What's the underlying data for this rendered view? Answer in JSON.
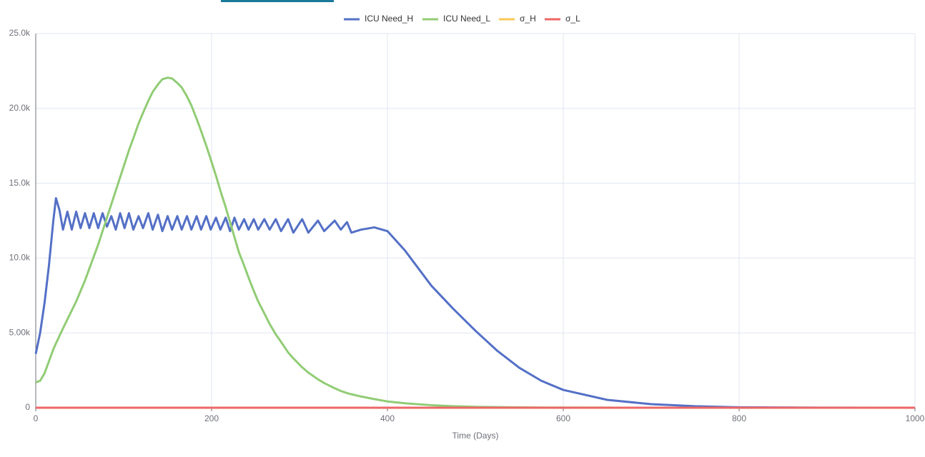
{
  "chart_data": {
    "type": "line",
    "x_label": "Time (Days)",
    "x": [
      0,
      5,
      10,
      15,
      20,
      23,
      27,
      31,
      36,
      41,
      46,
      51,
      56,
      61,
      66,
      71,
      76,
      81,
      86,
      91,
      96,
      101,
      106,
      111,
      117,
      122,
      128,
      133,
      139,
      144,
      150,
      155,
      161,
      166,
      172,
      177,
      183,
      188,
      194,
      199,
      205,
      210,
      216,
      221,
      226,
      231,
      237,
      242,
      248,
      253,
      260,
      266,
      273,
      279,
      287,
      293,
      303,
      310,
      321,
      328,
      340,
      347,
      354,
      359,
      370,
      385,
      400,
      420,
      450,
      475,
      500,
      525,
      550,
      575,
      600,
      650,
      700,
      750,
      800,
      900,
      1000
    ],
    "series": [
      {
        "name": "ICU Need_H",
        "color": "#5470c6",
        "values": [
          3600,
          5000,
          7000,
          9500,
          12500,
          14000,
          13200,
          11900,
          13100,
          11900,
          13100,
          12000,
          13000,
          12000,
          13000,
          12000,
          13000,
          12100,
          12800,
          11900,
          13000,
          12000,
          13000,
          11900,
          12800,
          12000,
          13000,
          11900,
          12900,
          11800,
          12800,
          11900,
          12800,
          11900,
          12800,
          11900,
          12800,
          11900,
          12800,
          11900,
          12700,
          11900,
          12700,
          11800,
          12700,
          11900,
          12600,
          11900,
          12600,
          11900,
          12600,
          11900,
          12600,
          11800,
          12600,
          11700,
          12600,
          11700,
          12500,
          11800,
          12500,
          11900,
          12400,
          11700,
          11900,
          12050,
          11800,
          10500,
          8150,
          6600,
          5150,
          3800,
          2670,
          1800,
          1190,
          525,
          240,
          100,
          30,
          5,
          0
        ]
      },
      {
        "name": "ICU Need_L",
        "color": "#91cc75",
        "values": [
          1700,
          1800,
          2300,
          3100,
          3900,
          4300,
          4800,
          5300,
          5900,
          6500,
          7100,
          7800,
          8500,
          9300,
          10100,
          10900,
          11800,
          12700,
          13600,
          14500,
          15400,
          16300,
          17200,
          18000,
          19000,
          19700,
          20500,
          21100,
          21600,
          21950,
          22050,
          22000,
          21700,
          21400,
          20800,
          20200,
          19300,
          18500,
          17500,
          16600,
          15500,
          14500,
          13400,
          12400,
          11400,
          10400,
          9500,
          8700,
          7800,
          7100,
          6300,
          5600,
          4900,
          4400,
          3700,
          3300,
          2700,
          2350,
          1900,
          1650,
          1300,
          1120,
          980,
          900,
          750,
          580,
          420,
          300,
          170,
          100,
          60,
          40,
          25,
          15,
          10,
          5,
          2,
          1,
          0,
          0,
          0
        ]
      },
      {
        "name": "σ_H",
        "color": "#fac858",
        "values": [
          0,
          0,
          0,
          0,
          0,
          0,
          0,
          0,
          0,
          0,
          0,
          0,
          0,
          0,
          0,
          0,
          0,
          0,
          0,
          0,
          0,
          0,
          0,
          0,
          0,
          0,
          0,
          0,
          0,
          0,
          0,
          0,
          0,
          0,
          0,
          0,
          0,
          0,
          0,
          0,
          0,
          0,
          0,
          0,
          0,
          0,
          0,
          0,
          0,
          0,
          0,
          0,
          0,
          0,
          0,
          0,
          0,
          0,
          0,
          0,
          0,
          0,
          0,
          0,
          0,
          0,
          0,
          0,
          0,
          0,
          0,
          0,
          0,
          0,
          0,
          0,
          0,
          0,
          0,
          0,
          0
        ]
      },
      {
        "name": "σ_L",
        "color": "#ee6666",
        "values": [
          0,
          0,
          0,
          0,
          0,
          0,
          0,
          0,
          0,
          0,
          0,
          0,
          0,
          0,
          0,
          0,
          0,
          0,
          0,
          0,
          0,
          0,
          0,
          0,
          0,
          0,
          0,
          0,
          0,
          0,
          0,
          0,
          0,
          0,
          0,
          0,
          0,
          0,
          0,
          0,
          0,
          0,
          0,
          0,
          0,
          0,
          0,
          0,
          0,
          0,
          0,
          0,
          0,
          0,
          0,
          0,
          0,
          0,
          0,
          0,
          0,
          0,
          0,
          0,
          0,
          0,
          0,
          0,
          0,
          0,
          0,
          0,
          0,
          0,
          0,
          0,
          0,
          0,
          0,
          0,
          0
        ]
      }
    ],
    "xlim": [
      0,
      1000
    ],
    "xticks": [
      0,
      200,
      400,
      600,
      800,
      1000
    ],
    "ylim": [
      0,
      25000
    ],
    "yticks": [
      0,
      {
        "value": 5000,
        "label": "5.00k"
      },
      {
        "value": 10000,
        "label": "10.0k"
      },
      {
        "value": 15000,
        "label": "15.0k"
      },
      {
        "value": 20000,
        "label": "20.0k"
      },
      {
        "value": 25000,
        "label": "25.0k"
      }
    ],
    "grid": true
  }
}
